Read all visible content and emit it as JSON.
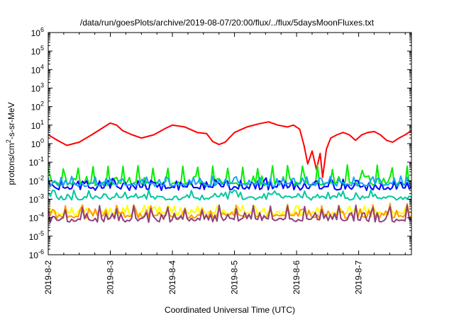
{
  "chart_data": {
    "type": "line",
    "title": "/data/run/goesPlots/archive/2019-08-07/20:00/flux/../flux/5daysMoonFluxes.txt",
    "xlabel": "Coordinated Universal Time (UTC)",
    "ylabel": {
      "base": "protons/cm",
      "sup": "2",
      "rest": "-s-sr-MeV"
    },
    "y_scale": "log",
    "ylim": [
      1e-06,
      1000000.0
    ],
    "y_ticks": [
      {
        "value": 1e-06,
        "base": "10",
        "exp": "-6"
      },
      {
        "value": 1e-05,
        "base": "10",
        "exp": "-5"
      },
      {
        "value": 0.0001,
        "base": "10",
        "exp": "-4"
      },
      {
        "value": 0.001,
        "base": "10",
        "exp": "-3"
      },
      {
        "value": 0.01,
        "base": "10",
        "exp": "-2"
      },
      {
        "value": 0.1,
        "base": "10",
        "exp": "-1"
      },
      {
        "value": 1,
        "base": "10",
        "exp": "0"
      },
      {
        "value": 10,
        "base": "10",
        "exp": "1"
      },
      {
        "value": 100,
        "base": "10",
        "exp": "2"
      },
      {
        "value": 1000.0,
        "base": "10",
        "exp": "3"
      },
      {
        "value": 10000.0,
        "base": "10",
        "exp": "4"
      },
      {
        "value": 100000.0,
        "base": "10",
        "exp": "5"
      },
      {
        "value": 1000000.0,
        "base": "10",
        "exp": "6"
      }
    ],
    "x_range_days": [
      0,
      5.85
    ],
    "x_ticks": [
      "2019-8-2",
      "2019-8-3",
      "2019-8-4",
      "2019-8-5",
      "2019-8-6",
      "2019-8-7"
    ],
    "grid": false,
    "legend": "none",
    "series": [
      {
        "color": "#ff0000",
        "points": [
          [
            0,
            3
          ],
          [
            0.15,
            1.5
          ],
          [
            0.3,
            0.8
          ],
          [
            0.5,
            1.2
          ],
          [
            0.7,
            3
          ],
          [
            0.9,
            8
          ],
          [
            1.0,
            13
          ],
          [
            1.1,
            10
          ],
          [
            1.2,
            5
          ],
          [
            1.35,
            3
          ],
          [
            1.5,
            2
          ],
          [
            1.7,
            3
          ],
          [
            1.9,
            7
          ],
          [
            2.0,
            10
          ],
          [
            2.2,
            8
          ],
          [
            2.4,
            4
          ],
          [
            2.55,
            3.5
          ],
          [
            2.65,
            1.3
          ],
          [
            2.75,
            0.9
          ],
          [
            2.85,
            1.2
          ],
          [
            3.0,
            4
          ],
          [
            3.2,
            8
          ],
          [
            3.4,
            12
          ],
          [
            3.55,
            15
          ],
          [
            3.7,
            10
          ],
          [
            3.85,
            8
          ],
          [
            3.95,
            10
          ],
          [
            4.05,
            6
          ],
          [
            4.12,
            0.8
          ],
          [
            4.18,
            0.08
          ],
          [
            4.25,
            0.4
          ],
          [
            4.32,
            0.04
          ],
          [
            4.38,
            0.3
          ],
          [
            4.42,
            0.015
          ],
          [
            4.48,
            0.5
          ],
          [
            4.55,
            2
          ],
          [
            4.65,
            3
          ],
          [
            4.75,
            4
          ],
          [
            4.85,
            3
          ],
          [
            4.95,
            1.5
          ],
          [
            5.05,
            3
          ],
          [
            5.15,
            4
          ],
          [
            5.25,
            4.5
          ],
          [
            5.35,
            3
          ],
          [
            5.45,
            1.5
          ],
          [
            5.55,
            1.2
          ],
          [
            5.65,
            2
          ],
          [
            5.75,
            3
          ],
          [
            5.85,
            5
          ]
        ]
      },
      {
        "color": "#00ee00",
        "base": 0.007,
        "spike": 0.06,
        "spike_every": 7
      },
      {
        "color": "#0000ff",
        "base": 0.004,
        "spike": 0.012,
        "spike_every": 6
      },
      {
        "color": "#1ea0ff",
        "base": 0.0065,
        "spike": 0.015,
        "spike_every": 11
      },
      {
        "color": "#00c8a0",
        "base": 0.0012,
        "spike": 0.002,
        "spike_every": 9
      },
      {
        "color": "#ffff00",
        "base": 0.00018,
        "spike": 0.0004,
        "spike_every": 8
      },
      {
        "color": "#ff9900",
        "base": 0.00012,
        "spike": 0.0005,
        "spike_every": 8
      },
      {
        "color": "#90407a",
        "base": 7.5e-05,
        "spike": 0.0004,
        "spike_every": 8
      }
    ]
  }
}
